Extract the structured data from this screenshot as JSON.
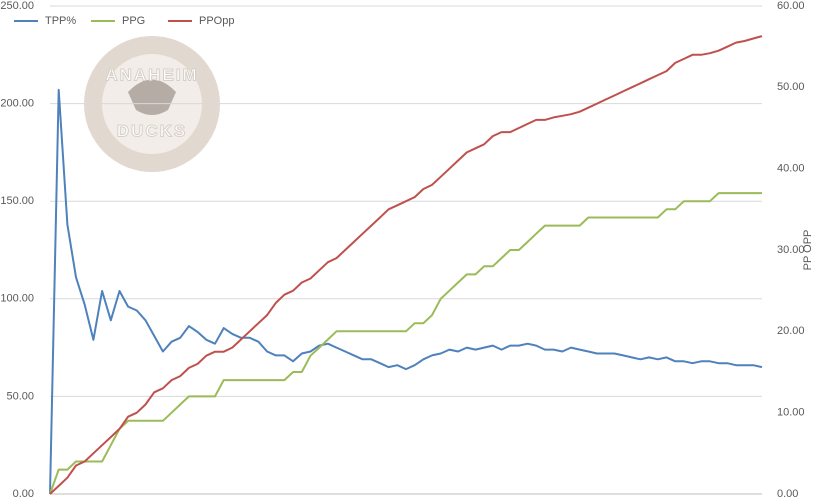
{
  "chart_data": {
    "type": "line",
    "series": [
      {
        "name": "TPP%",
        "color": "#4f81bd",
        "axis": "y",
        "values": [
          0,
          207,
          138,
          111,
          97,
          79,
          104,
          89,
          104,
          96,
          94,
          89,
          81,
          73,
          78,
          80,
          86,
          83,
          79,
          77,
          85,
          82,
          80,
          80,
          78,
          73,
          71,
          71,
          68,
          72,
          73,
          76,
          77,
          75,
          73,
          71,
          69,
          69,
          67,
          65,
          66,
          64,
          66,
          69,
          71,
          72,
          74,
          73,
          75,
          74,
          75,
          76,
          74,
          76,
          76,
          77,
          76,
          74,
          74,
          73,
          75,
          74,
          73,
          72,
          72,
          72,
          71,
          70,
          69,
          70,
          69,
          70,
          68,
          68,
          67,
          68,
          68,
          67,
          67,
          66,
          66,
          66,
          65
        ]
      },
      {
        "name": "PPG",
        "color": "#9bbb59",
        "axis": "y2",
        "values": [
          0,
          3,
          3,
          4,
          4,
          4,
          4,
          6,
          8,
          9,
          9,
          9,
          9,
          9,
          10,
          11,
          12,
          12,
          12,
          12,
          14,
          14,
          14,
          14,
          14,
          14,
          14,
          14,
          15,
          15,
          17,
          18,
          19,
          20,
          20,
          20,
          20,
          20,
          20,
          20,
          20,
          20,
          21,
          21,
          22,
          24,
          25,
          26,
          27,
          27,
          28,
          28,
          29,
          30,
          30,
          31,
          32,
          33,
          33,
          33,
          33,
          33,
          34,
          34,
          34,
          34,
          34,
          34,
          34,
          34,
          34,
          35,
          35,
          36,
          36,
          36,
          36,
          37,
          37,
          37,
          37,
          37,
          37
        ]
      },
      {
        "name": "PPOpp",
        "color": "#c0504d",
        "axis": "y2",
        "values": [
          0,
          1,
          2,
          3.5,
          4,
          5,
          6,
          7,
          8,
          9.5,
          10,
          11,
          12.5,
          13,
          14,
          14.5,
          15.5,
          16,
          17,
          17.5,
          17.5,
          18,
          19,
          20,
          21,
          22,
          23.5,
          24.5,
          25,
          26,
          26.5,
          27.5,
          28.5,
          29,
          30,
          31,
          32,
          33,
          34,
          35,
          35.5,
          36,
          36.5,
          37.5,
          38,
          39,
          40,
          41,
          42,
          42.5,
          43,
          44,
          44.5,
          44.5,
          45,
          45.5,
          46,
          46,
          46.3,
          46.5,
          46.7,
          47,
          47.5,
          48,
          48.5,
          49,
          49.5,
          50,
          50.5,
          51,
          51.5,
          52,
          53,
          53.5,
          54,
          54,
          54.2,
          54.5,
          55,
          55.5,
          55.7,
          56,
          56.3
        ]
      }
    ],
    "x": [
      0,
      1,
      2,
      3,
      4,
      5,
      6,
      7,
      8,
      9,
      10,
      11,
      12,
      13,
      14,
      15,
      16,
      17,
      18,
      19,
      20,
      21,
      22,
      23,
      24,
      25,
      26,
      27,
      28,
      29,
      30,
      31,
      32,
      33,
      34,
      35,
      36,
      37,
      38,
      39,
      40,
      41,
      42,
      43,
      44,
      45,
      46,
      47,
      48,
      49,
      50,
      51,
      52,
      53,
      54,
      55,
      56,
      57,
      58,
      59,
      60,
      61,
      62,
      63,
      64,
      65,
      66,
      67,
      68,
      69,
      70,
      71,
      72,
      73,
      74,
      75,
      76,
      77,
      78,
      79,
      80,
      81,
      82
    ],
    "xlim": [
      0,
      82
    ],
    "ylim": [
      0,
      250
    ],
    "yticks": [
      {
        "value": 0,
        "label": "0.00"
      },
      {
        "value": 50,
        "label": "50.00"
      },
      {
        "value": 100,
        "label": "100.00"
      },
      {
        "value": 150,
        "label": "150.00"
      },
      {
        "value": 200,
        "label": "200.00"
      },
      {
        "value": 250,
        "label": "250.00"
      }
    ],
    "y2lim": [
      0,
      60
    ],
    "y2ticks": [
      {
        "value": 0,
        "label": "0.00"
      },
      {
        "value": 10,
        "label": "10.00"
      },
      {
        "value": 20,
        "label": "20.00"
      },
      {
        "value": 30,
        "label": "30.00"
      },
      {
        "value": 40,
        "label": "40.00"
      },
      {
        "value": 50,
        "label": "50.00"
      },
      {
        "value": 60,
        "label": "60.00"
      }
    ],
    "y2label": "PP OPP",
    "grid": true
  },
  "logo": {
    "top": "ANAHEIM",
    "bottom": "DUCKS"
  }
}
